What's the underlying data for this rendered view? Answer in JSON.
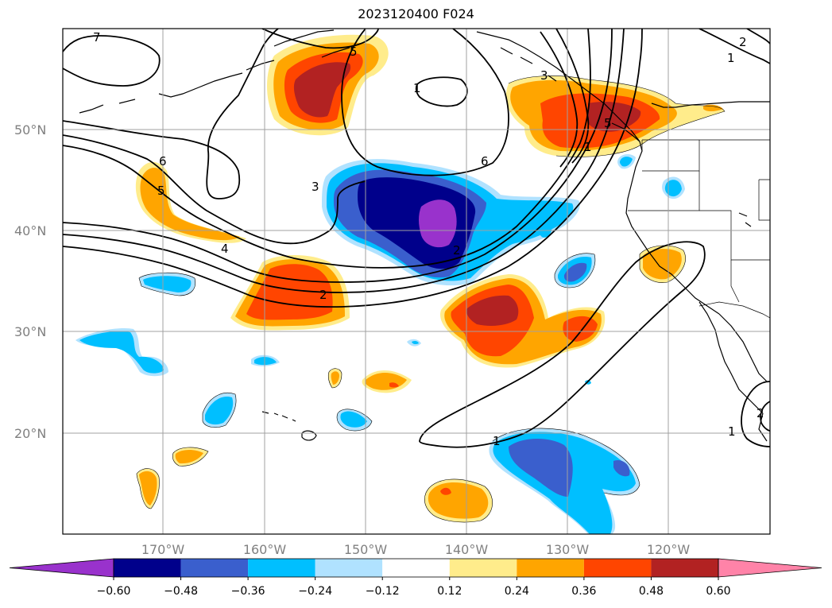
{
  "title": "2023120400 F024",
  "latitude_labels": [
    "50°N",
    "40°N",
    "30°N",
    "20°N"
  ],
  "longitude_labels": [
    "170°W",
    "160°W",
    "150°W",
    "140°W",
    "130°W",
    "120°W"
  ],
  "colorbar": {
    "colors": [
      "#9932cc",
      "#00008b",
      "#3a5fcd",
      "#00bfff",
      "#b0e2ff",
      "#ffffff",
      "#ffec8b",
      "#ffa500",
      "#ff4500",
      "#b22222",
      "#ff83a8"
    ],
    "tick_labels": [
      "−0.60",
      "−0.48",
      "−0.36",
      "−0.24",
      "−0.12",
      "0.12",
      "0.24",
      "0.36",
      "0.48",
      "0.60"
    ]
  },
  "contour_labels": [
    "7",
    "5",
    "6",
    "5",
    "4",
    "3",
    "2",
    "6",
    "5",
    "3",
    "2",
    "1",
    "1",
    "1",
    "2",
    "1",
    "2",
    "1"
  ],
  "palette": {
    "orange": "#ffa500",
    "orange_red": "#ff4500",
    "firebrick": "#b22222",
    "yellow": "#ffec8b",
    "light_blue": "#b0e2ff",
    "deep_sky": "#00bfff",
    "royal_blue": "#3a5fcd",
    "navy": "#00008b",
    "orchid": "#9932cc"
  }
}
